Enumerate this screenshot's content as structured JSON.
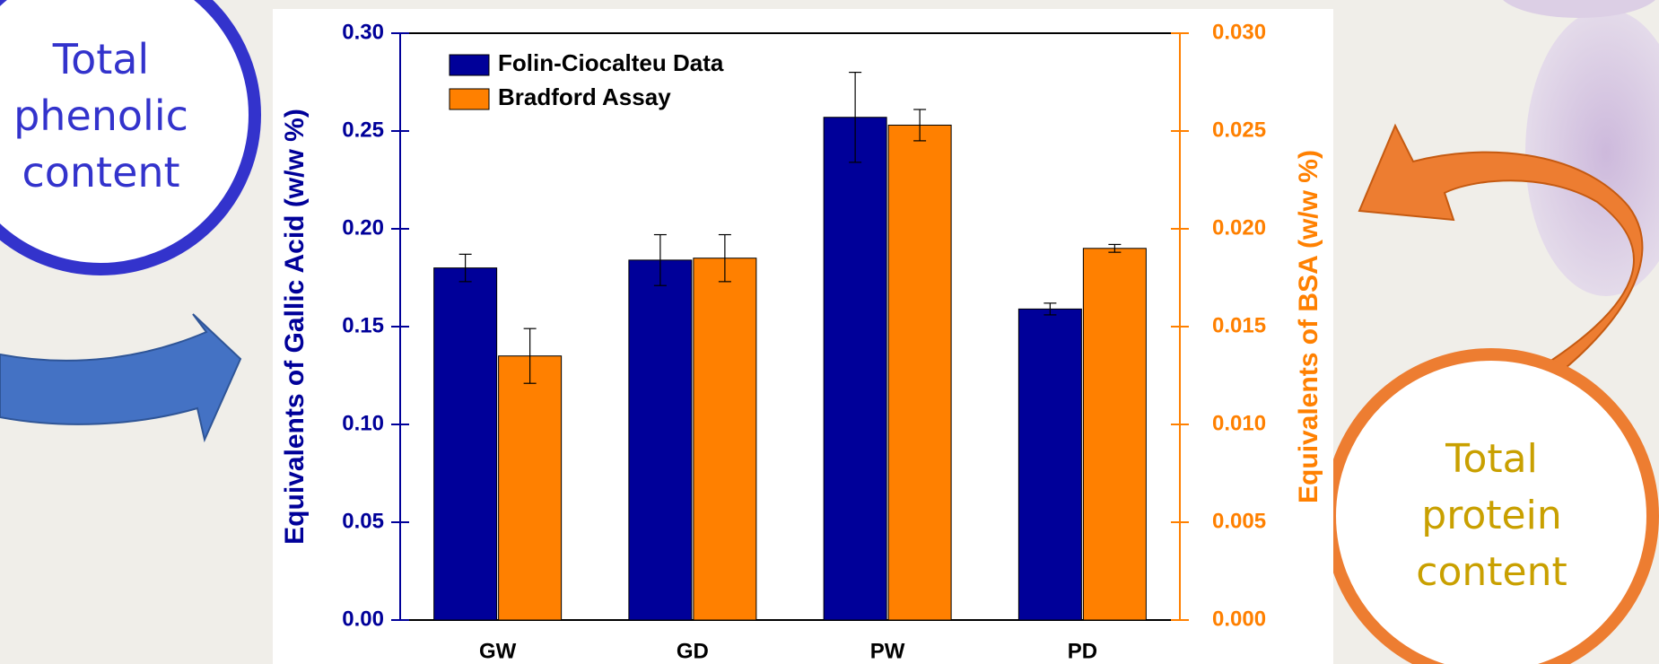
{
  "chart_data": {
    "type": "bar",
    "annotations": [
      "Total phenolic content",
      "Total protein content"
    ],
    "categories": [
      "GW",
      "GD",
      "PW",
      "PD"
    ],
    "ylabel": "Equivalents of Gallic Acid (w/w %)",
    "y2label": "Equivalents of BSA (w/w %)",
    "ylim": [
      0,
      0.3
    ],
    "yticks": [
      {
        "value": 0,
        "label": "0.00"
      },
      0.05,
      {
        "value": 0.1,
        "label": "0.10"
      },
      0.15,
      {
        "value": 0.2,
        "label": "0.20"
      },
      0.25,
      {
        "value": 0.3,
        "label": "0.30"
      }
    ],
    "y2lim": [
      0,
      0.03
    ],
    "y2ticks": [
      {
        "value": 0,
        "label": "0.000"
      },
      {
        "value": 0.005,
        "label": "0.005"
      },
      {
        "value": 0.01,
        "label": "0.010"
      },
      {
        "value": 0.015,
        "label": "0.015"
      },
      {
        "value": 0.02,
        "label": "0.020"
      },
      {
        "value": 0.025,
        "label": "0.025"
      },
      {
        "value": 0.03,
        "label": "0.030"
      }
    ],
    "legend": "upper left",
    "series": [
      {
        "name": "Folin-Ciocalteu Data",
        "color": "#000099",
        "values": [
          0.18,
          0.184,
          0.257,
          0.159
        ],
        "errors": [
          0.007,
          0.013,
          0.023,
          0.003
        ]
      },
      {
        "name": "Bradford Assay",
        "color": "#ff8000",
        "axis": "y2",
        "values": [
          0.0135,
          0.0185,
          0.0253,
          0.019
        ],
        "errors": [
          0.0014,
          0.0012,
          0.0008,
          0.0002
        ]
      }
    ]
  }
}
